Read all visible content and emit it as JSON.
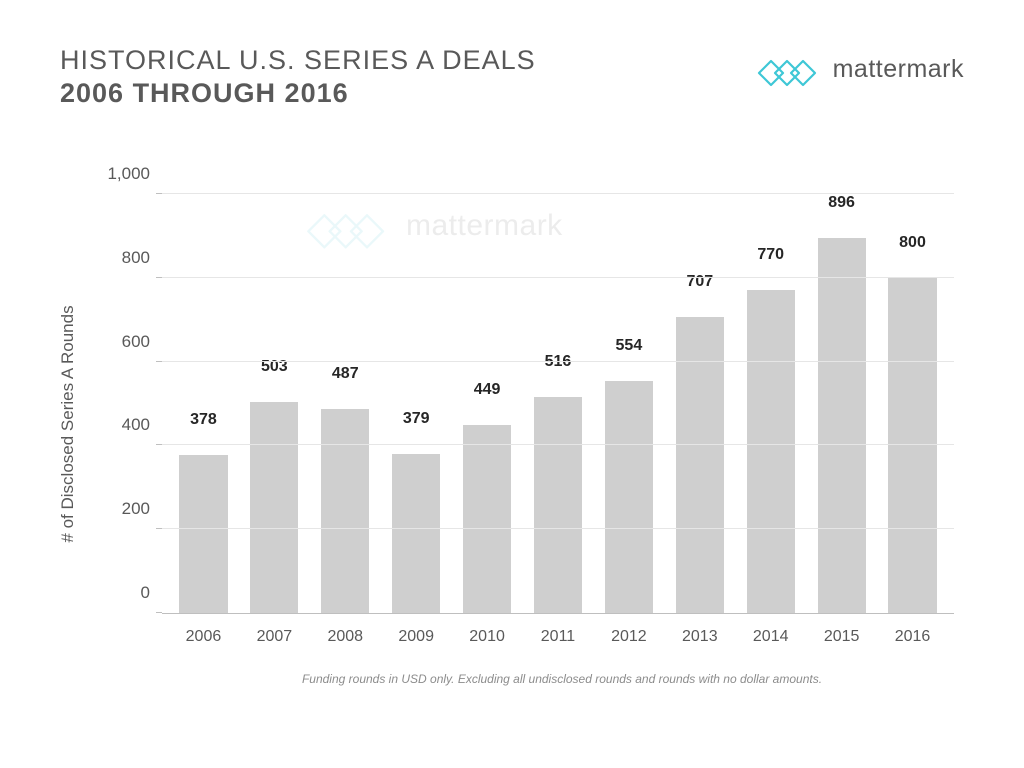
{
  "header": {
    "title_line1": "HISTORICAL U.S. SERIES A DEALS",
    "title_line2": "2006 THROUGH 2016",
    "brand_text": "mattermark",
    "brand_logo_color": "#3ec7d6"
  },
  "chart": {
    "type": "bar",
    "y_axis_label": "# of Disclosed Series A Rounds",
    "categories": [
      "2006",
      "2007",
      "2008",
      "2009",
      "2010",
      "2011",
      "2012",
      "2013",
      "2014",
      "2015",
      "2016"
    ],
    "values": [
      378,
      503,
      487,
      379,
      449,
      516,
      554,
      707,
      770,
      896,
      800
    ],
    "bar_color": "#cfcfcf",
    "value_label_color": "#262626",
    "value_label_fontsize": 16,
    "value_label_fontweight": 700,
    "axis_label_color": "#595959",
    "tick_fontsize": 17,
    "xtick_fontsize": 16,
    "grid_color": "#e6e6e6",
    "axis_line_color": "#bfbfbf",
    "background_color": "#ffffff",
    "ylim": [
      0,
      1000
    ],
    "ytick_step": 200,
    "ytick_labels": [
      "0",
      "200",
      "400",
      "600",
      "800",
      "1,000"
    ],
    "bar_width": 0.68
  },
  "footnote": "Funding rounds in USD only. Excluding all undisclosed rounds and rounds with no dollar amounts.",
  "watermark": {
    "text": "mattermark",
    "logo_color": "#cceef3",
    "text_color": "#d0d0d0"
  }
}
